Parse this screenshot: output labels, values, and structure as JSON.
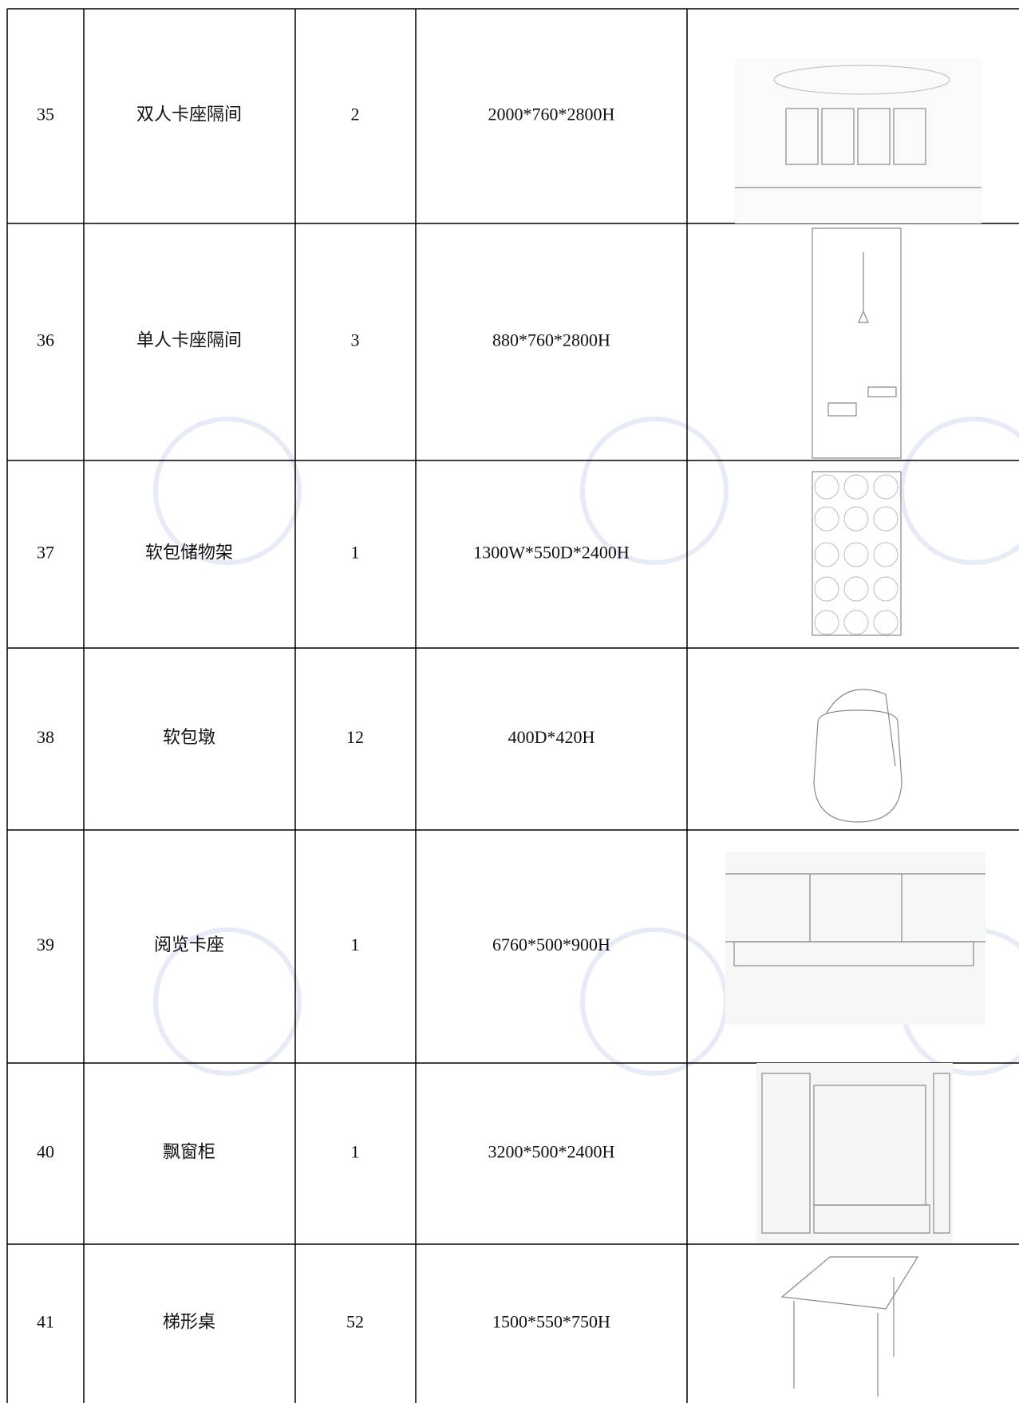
{
  "table": {
    "rows": [
      [
        "35",
        "双人卡座隔间",
        "2",
        "2000*760*2800H"
      ],
      [
        "36",
        "单人卡座隔间",
        "3",
        "880*760*2800H"
      ],
      [
        "37",
        "软包储物架",
        "1",
        "1300W*550D*2400H"
      ],
      [
        "38",
        "软包墩",
        "12",
        "400D*420H"
      ],
      [
        "39",
        "阅览卡座",
        "1",
        "6760*500*900H"
      ],
      [
        "40",
        "飘窗柜",
        "1",
        "3200*500*2400H"
      ],
      [
        "41",
        "梯形桌",
        "52",
        "1500*550*750H"
      ]
    ]
  }
}
